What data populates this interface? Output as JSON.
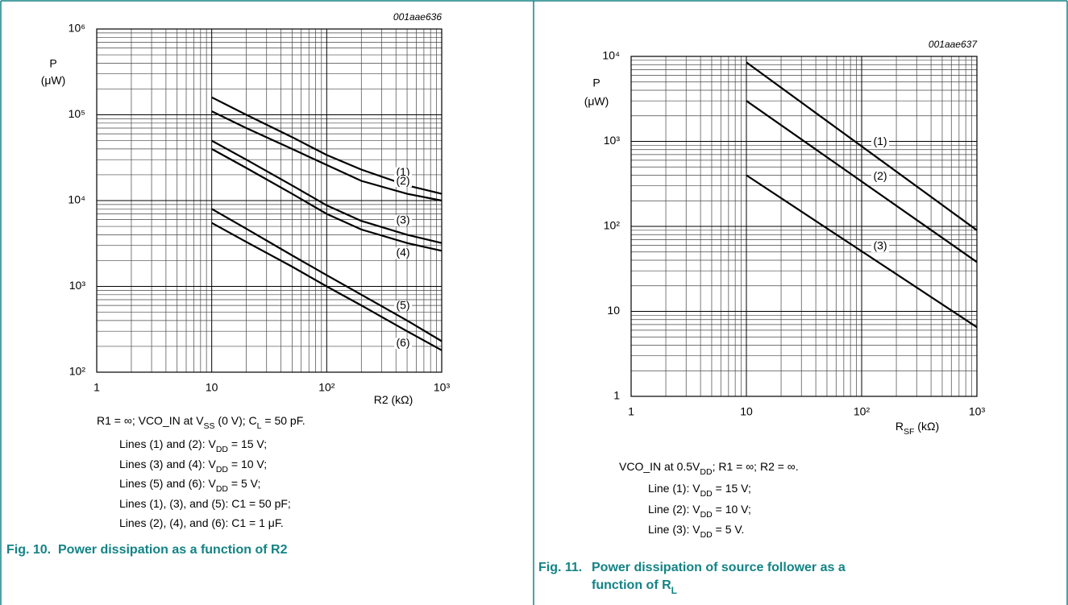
{
  "chart_data": [
    {
      "type": "line",
      "figure_id": "001aae636",
      "y_label": [
        "P",
        "(μW)"
      ],
      "x_label": [
        "R2 (kΩ)"
      ],
      "xscale": "log",
      "yscale": "log",
      "grid": true,
      "xlim": [
        1,
        1000
      ],
      "xticks": [
        1,
        10,
        {
          "value": 100,
          "label": "10²"
        },
        {
          "value": 1000,
          "label": "10³"
        }
      ],
      "ylim": [
        100,
        1000000
      ],
      "yticks": [
        {
          "value": 100,
          "label": "10²"
        },
        {
          "value": 1000,
          "label": "10³"
        },
        {
          "value": 10000,
          "label": "10⁴"
        },
        {
          "value": 100000,
          "label": "10⁵"
        },
        {
          "value": 1000000,
          "label": "10⁶"
        }
      ],
      "x": [
        10,
        20,
        50,
        100,
        200,
        500,
        1000
      ],
      "series": [
        {
          "name": "(1)",
          "color": "#000000",
          "values": [
            160000,
            100000,
            55000,
            34000,
            23000,
            15000,
            12000
          ]
        },
        {
          "name": "(2)",
          "color": "#000000",
          "values": [
            110000,
            70000,
            40000,
            26000,
            17000,
            12000,
            10000
          ]
        },
        {
          "name": "(3)",
          "color": "#000000",
          "values": [
            50000,
            30000,
            15000,
            8800,
            5800,
            4000,
            3200
          ]
        },
        {
          "name": "(4)",
          "color": "#000000",
          "values": [
            40000,
            24000,
            12000,
            7000,
            4600,
            3200,
            2600
          ]
        },
        {
          "name": "(5)",
          "color": "#000000",
          "values": [
            8000,
            4700,
            2300,
            1350,
            800,
            400,
            230
          ]
        },
        {
          "name": "(6)",
          "color": "#000000",
          "values": [
            5500,
            3300,
            1700,
            1000,
            600,
            300,
            180
          ]
        }
      ],
      "notes": [
        [
          "R1 = ∞; VCO_IN at V",
          {
            "sub": "SS"
          },
          " (0 V); C",
          {
            "sub": "L"
          },
          " = 50 pF."
        ],
        [
          "Lines (1) and (2): V",
          {
            "sub": "DD"
          },
          " = 15 V;"
        ],
        [
          "Lines (3) and (4): V",
          {
            "sub": "DD"
          },
          " = 10 V;"
        ],
        [
          "Lines (5) and (6): V",
          {
            "sub": "DD"
          },
          " = 5 V;"
        ],
        [
          "Lines (1), (3), and (5): C1 = 50 pF;"
        ],
        [
          "Lines (2), (4), and (6): C1 = 1 μF."
        ]
      ],
      "fig_label": "Fig. 10.",
      "caption": [
        [
          "Power dissipation as a function of R2"
        ]
      ]
    },
    {
      "type": "line",
      "figure_id": "001aae637",
      "y_label": [
        "P",
        "(μW)"
      ],
      "x_label": [
        "R",
        {
          "sub": "SF"
        },
        " (kΩ)"
      ],
      "xscale": "log",
      "yscale": "log",
      "grid": true,
      "xlim": [
        1,
        1000
      ],
      "xticks": [
        1,
        10,
        {
          "value": 100,
          "label": "10²"
        },
        {
          "value": 1000,
          "label": "10³"
        }
      ],
      "ylim": [
        1,
        10000
      ],
      "yticks": [
        1,
        10,
        {
          "value": 100,
          "label": "10²"
        },
        {
          "value": 1000,
          "label": "10³"
        },
        {
          "value": 10000,
          "label": "10⁴"
        }
      ],
      "x": [
        10,
        1000
      ],
      "series": [
        {
          "name": "(1)",
          "color": "#000000",
          "values": [
            8500,
            90
          ]
        },
        {
          "name": "(2)",
          "color": "#000000",
          "values": [
            3000,
            38
          ]
        },
        {
          "name": "(3)",
          "color": "#000000",
          "values": [
            400,
            6.5
          ]
        }
      ],
      "notes": [
        [
          "VCO_IN at 0.5V",
          {
            "sub": "DD"
          },
          "; R1 = ∞; R2 = ∞."
        ],
        [
          "Line (1): V",
          {
            "sub": "DD"
          },
          " = 15 V;"
        ],
        [
          "Line (2): V",
          {
            "sub": "DD"
          },
          " = 10 V;"
        ],
        [
          "Line (3): V",
          {
            "sub": "DD"
          },
          " = 5 V."
        ]
      ],
      "fig_label": "Fig. 11.",
      "caption": [
        [
          "Power dissipation of source follower as a"
        ],
        [
          "function of R",
          {
            "sub": "L"
          }
        ]
      ]
    }
  ]
}
